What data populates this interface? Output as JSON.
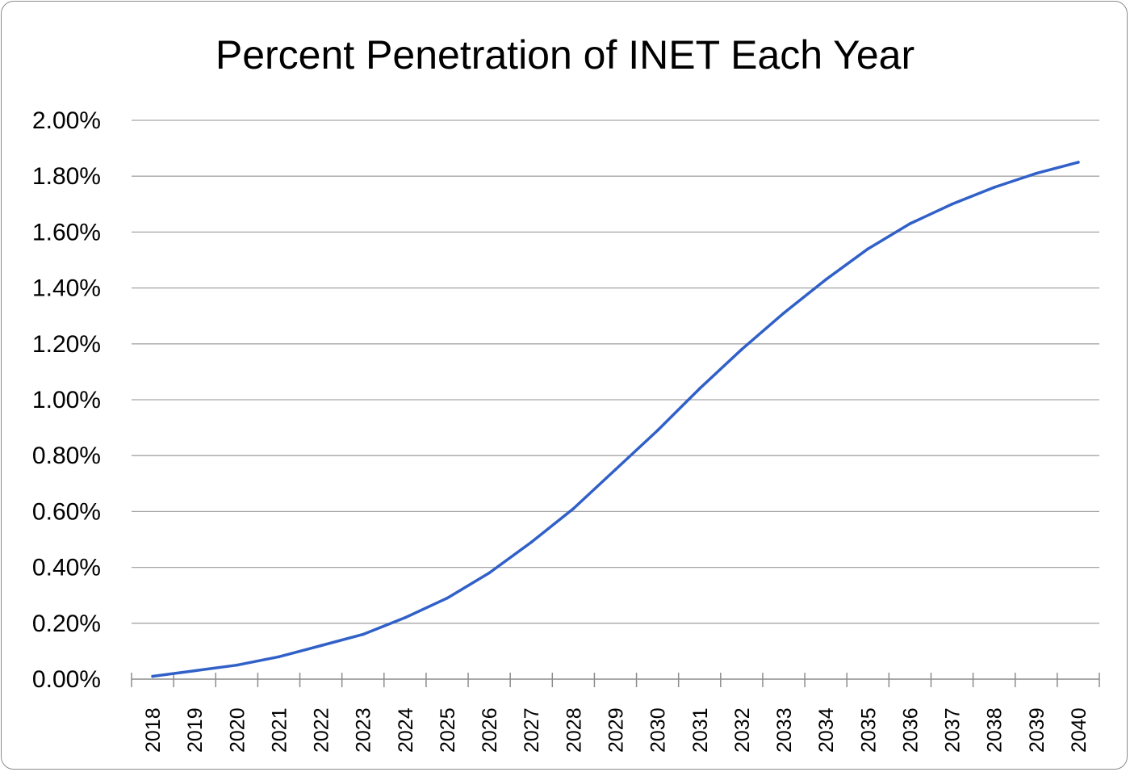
{
  "chart_data": {
    "type": "line",
    "title": "Percent Penetration of INET Each Year",
    "xlabel": "",
    "ylabel": "",
    "categories": [
      "2018",
      "2019",
      "2020",
      "2021",
      "2022",
      "2023",
      "2024",
      "2025",
      "2026",
      "2027",
      "2028",
      "2029",
      "2030",
      "2031",
      "2032",
      "2033",
      "2034",
      "2035",
      "2036",
      "2037",
      "2038",
      "2039",
      "2040"
    ],
    "series": [
      {
        "values": [
          0.0001,
          0.0003,
          0.0005,
          0.0008,
          0.0012,
          0.0016,
          0.0022,
          0.0029,
          0.0038,
          0.0049,
          0.0061,
          0.0075,
          0.0089,
          0.0104,
          0.0118,
          0.0131,
          0.0143,
          0.0154,
          0.0163,
          0.017,
          0.0176,
          0.0181,
          0.0185
        ],
        "color": "#3060c8"
      }
    ],
    "ylim": [
      0,
      0.02
    ],
    "yticks": [
      "0.00%",
      "0.20%",
      "0.40%",
      "0.60%",
      "0.80%",
      "1.00%",
      "1.20%",
      "1.40%",
      "1.60%",
      "1.80%",
      "2.00%"
    ],
    "grid": true,
    "legend": "none",
    "gridline_color": "#a6a6a6"
  }
}
